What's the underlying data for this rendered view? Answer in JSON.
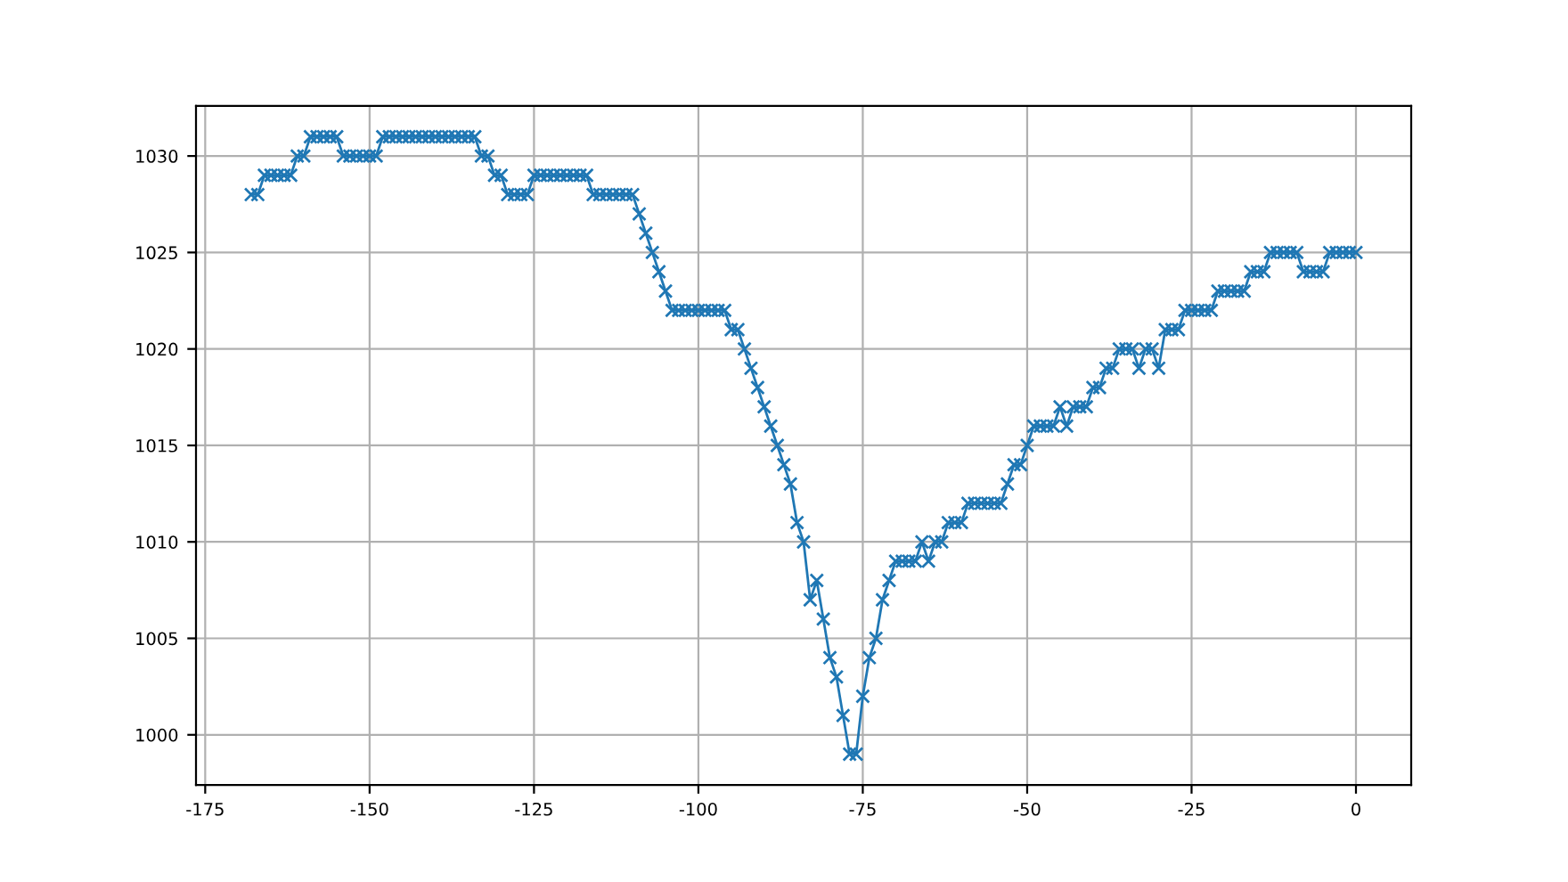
{
  "chart_data": {
    "type": "line",
    "x": [
      -168,
      -167,
      -166,
      -165,
      -164,
      -163,
      -162,
      -161,
      -160,
      -159,
      -158,
      -157,
      -156,
      -155,
      -154,
      -153,
      -152,
      -151,
      -150,
      -149,
      -148,
      -147,
      -146,
      -145,
      -144,
      -143,
      -142,
      -141,
      -140,
      -139,
      -138,
      -137,
      -136,
      -135,
      -134,
      -133,
      -132,
      -131,
      -130,
      -129,
      -128,
      -127,
      -126,
      -125,
      -124,
      -123,
      -122,
      -121,
      -120,
      -119,
      -118,
      -117,
      -116,
      -115,
      -114,
      -113,
      -112,
      -111,
      -110,
      -109,
      -108,
      -107,
      -106,
      -105,
      -104,
      -103,
      -102,
      -101,
      -100,
      -99,
      -98,
      -97,
      -96,
      -95,
      -94,
      -93,
      -92,
      -91,
      -90,
      -89,
      -88,
      -87,
      -86,
      -85,
      -84,
      -83,
      -82,
      -81,
      -80,
      -79,
      -78,
      -77,
      -76,
      -75,
      -74,
      -73,
      -72,
      -71,
      -70,
      -69,
      -68,
      -67,
      -66,
      -65,
      -64,
      -63,
      -62,
      -61,
      -60,
      -59,
      -58,
      -57,
      -56,
      -55,
      -54,
      -53,
      -52,
      -51,
      -50,
      -49,
      -48,
      -47,
      -46,
      -45,
      -44,
      -43,
      -42,
      -41,
      -40,
      -39,
      -38,
      -37,
      -36,
      -35,
      -34,
      -33,
      -32,
      -31,
      -30,
      -29,
      -28,
      -27,
      -26,
      -25,
      -24,
      -23,
      -22,
      -21,
      -20,
      -19,
      -18,
      -17,
      -16,
      -15,
      -14,
      -13,
      -12,
      -11,
      -10,
      -9,
      -8,
      -7,
      -6,
      -5,
      -4,
      -3,
      -2,
      -1,
      0
    ],
    "series": [
      {
        "color": "#1f77b4",
        "values": [
          1028,
          1028,
          1029,
          1029,
          1029,
          1029,
          1029,
          1030,
          1030,
          1031,
          1031,
          1031,
          1031,
          1031,
          1030,
          1030,
          1030,
          1030,
          1030,
          1030,
          1031,
          1031,
          1031,
          1031,
          1031,
          1031,
          1031,
          1031,
          1031,
          1031,
          1031,
          1031,
          1031,
          1031,
          1031,
          1030,
          1030,
          1029,
          1029,
          1028,
          1028,
          1028,
          1028,
          1029,
          1029,
          1029,
          1029,
          1029,
          1029,
          1029,
          1029,
          1029,
          1028,
          1028,
          1028,
          1028,
          1028,
          1028,
          1028,
          1027,
          1026,
          1025,
          1024,
          1023,
          1022,
          1022,
          1022,
          1022,
          1022,
          1022,
          1022,
          1022,
          1022,
          1021,
          1021,
          1020,
          1019,
          1018,
          1017,
          1016,
          1015,
          1014,
          1013,
          1011,
          1010,
          1007,
          1008,
          1006,
          1004,
          1003,
          1001,
          999,
          999,
          1002,
          1004,
          1005,
          1007,
          1008,
          1009,
          1009,
          1009,
          1009,
          1010,
          1009,
          1010,
          1010,
          1011,
          1011,
          1011,
          1012,
          1012,
          1012,
          1012,
          1012,
          1012,
          1013,
          1014,
          1014,
          1015,
          1016,
          1016,
          1016,
          1016,
          1017,
          1016,
          1017,
          1017,
          1017,
          1018,
          1018,
          1019,
          1019,
          1020,
          1020,
          1020,
          1019,
          1020,
          1020,
          1019,
          1021,
          1021,
          1021,
          1022,
          1022,
          1022,
          1022,
          1022,
          1023,
          1023,
          1023,
          1023,
          1023,
          1024,
          1024,
          1024,
          1025,
          1025,
          1025,
          1025,
          1025,
          1024,
          1024,
          1024,
          1024,
          1025,
          1025,
          1025,
          1025,
          1025
        ]
      }
    ],
    "xlim": [
      -176.4,
      8.4
    ],
    "xticks": [
      -175,
      -150,
      -125,
      -100,
      -75,
      -50,
      -25,
      0
    ],
    "ylim": [
      997.4,
      1032.6
    ],
    "yticks": [
      1000,
      1005,
      1010,
      1015,
      1020,
      1025,
      1030
    ],
    "grid": true,
    "marker": "cross",
    "line_style": "solid"
  }
}
